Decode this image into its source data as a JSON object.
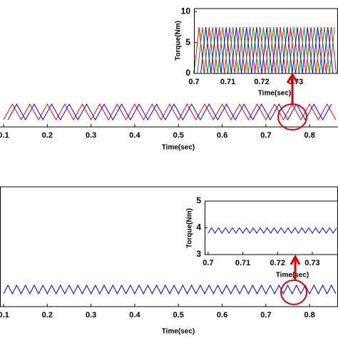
{
  "chart_data": [
    {
      "type": "line",
      "xlabel": "Time(sec)",
      "xlim": [
        0.0918,
        0.865
      ],
      "ylim": [
        -3.4,
        57.3
      ],
      "xticks": [
        0.1,
        0.2,
        0.3,
        0.4,
        0.5,
        0.6,
        0.7,
        0.8
      ],
      "series": [
        {
          "color": "#ff0000",
          "x": [
            0.1,
            0.12,
            0.14,
            0.16,
            0.18,
            0.2,
            0.22,
            0.24,
            0.26,
            0.28,
            0.3,
            0.32,
            0.34,
            0.36,
            0.38,
            0.4,
            0.42,
            0.44,
            0.46,
            0.48,
            0.5,
            0.52,
            0.54,
            0.56,
            0.58,
            0.6,
            0.62,
            0.64,
            0.66,
            0.68,
            0.7,
            0.72,
            0.74,
            0.76,
            0.78,
            0.8,
            0.82,
            0.84,
            0.86
          ],
          "values": [
            0,
            7.5,
            0,
            7.5,
            0,
            7.5,
            0,
            7.5,
            0,
            7.5,
            0,
            7.5,
            0,
            7.5,
            0,
            7.5,
            0,
            7.5,
            0,
            7.5,
            0,
            7.5,
            0,
            7.5,
            0,
            7.5,
            0,
            7.5,
            0,
            7.5,
            0,
            7.5,
            0,
            7.5,
            0,
            7.5,
            0,
            7.5,
            0
          ]
        },
        {
          "color": "#0000ff",
          "x": [
            0.11,
            0.13,
            0.15,
            0.17,
            0.19,
            0.21,
            0.23,
            0.25,
            0.27,
            0.29,
            0.31,
            0.33,
            0.35,
            0.37,
            0.39,
            0.41,
            0.43,
            0.45,
            0.47,
            0.49,
            0.51,
            0.53,
            0.55,
            0.57,
            0.59,
            0.61,
            0.63,
            0.65,
            0.67,
            0.69,
            0.71,
            0.73,
            0.75,
            0.77,
            0.79,
            0.81,
            0.83,
            0.85
          ],
          "values": [
            0,
            7.5,
            0,
            7.5,
            0,
            7.5,
            0,
            7.5,
            0,
            7.5,
            0,
            7.5,
            0,
            7.5,
            0,
            7.5,
            0,
            7.5,
            0,
            7.5,
            0,
            7.5,
            0,
            7.5,
            0,
            7.5,
            0,
            7.5,
            0,
            7.5,
            0,
            7.5,
            0,
            7.5,
            0,
            7.5,
            0,
            7.5
          ]
        }
      ]
    },
    {
      "type": "line",
      "xlabel": "Time(sec)",
      "ylabel": "Torque(Nm)",
      "xlim": [
        0.7,
        0.7425
      ],
      "ylim": [
        0,
        10.5
      ],
      "xticks": [
        0.7,
        0.71,
        0.72,
        0.73
      ],
      "yticks": [
        0,
        5,
        10
      ],
      "series": [
        {
          "color": "#ff0000",
          "x": [
            0.7,
            0.7015,
            0.703,
            0.7045,
            0.706,
            0.7075,
            0.709,
            0.7105,
            0.712,
            0.7135,
            0.715,
            0.7165,
            0.718,
            0.7195,
            0.721,
            0.7225,
            0.724,
            0.7255,
            0.727,
            0.7285,
            0.73,
            0.7315,
            0.733,
            0.7345,
            0.736,
            0.7375,
            0.739,
            0.7405,
            0.742
          ],
          "values": [
            0,
            7.5,
            0,
            7.5,
            0,
            7.5,
            0,
            7.5,
            0,
            7.5,
            0,
            7.5,
            0,
            7.5,
            0,
            7.5,
            0,
            7.5,
            0,
            7.5,
            0,
            7.5,
            0,
            7.5,
            0,
            7.5,
            0,
            7.5,
            0
          ]
        },
        {
          "color": "#00a000",
          "x": [
            0.701,
            0.7025,
            0.704,
            0.7055,
            0.707,
            0.7085,
            0.71,
            0.7115,
            0.713,
            0.7145,
            0.716,
            0.7175,
            0.719,
            0.7205,
            0.722,
            0.7235,
            0.725,
            0.7265,
            0.728,
            0.7295,
            0.731,
            0.7325,
            0.734,
            0.7355,
            0.737,
            0.7385,
            0.74,
            0.7415
          ],
          "values": [
            0,
            7.5,
            0,
            7.5,
            0,
            7.5,
            0,
            7.5,
            0,
            7.5,
            0,
            7.5,
            0,
            7.5,
            0,
            7.5,
            0,
            7.5,
            0,
            7.5,
            0,
            7.5,
            0,
            7.5,
            0,
            7.5,
            0,
            7.5
          ]
        },
        {
          "color": "#0000ff",
          "x": [
            0.702,
            0.7035,
            0.705,
            0.7065,
            0.708,
            0.7095,
            0.711,
            0.7125,
            0.714,
            0.7155,
            0.717,
            0.7185,
            0.72,
            0.7215,
            0.723,
            0.7245,
            0.726,
            0.7275,
            0.729,
            0.7305,
            0.732,
            0.7335,
            0.735,
            0.7365,
            0.738,
            0.7395,
            0.741
          ],
          "values": [
            0,
            7.5,
            0,
            7.5,
            0,
            7.5,
            0,
            7.5,
            0,
            7.5,
            0,
            7.5,
            0,
            7.5,
            0,
            7.5,
            0,
            7.5,
            0,
            7.5,
            0,
            7.5,
            0,
            7.5,
            0,
            7.5,
            0
          ]
        }
      ]
    },
    {
      "type": "line",
      "xlabel": "Time(sec)",
      "xlim": [
        0.0918,
        0.865
      ],
      "ylim": [
        3.1,
        8.7
      ],
      "xticks": [
        0.1,
        0.2,
        0.3,
        0.4,
        0.5,
        0.6,
        0.7,
        0.8
      ],
      "series": [
        {
          "color": "#0000cc",
          "x": [
            0.1,
            0.11,
            0.12,
            0.13,
            0.14,
            0.15,
            0.16,
            0.17,
            0.18,
            0.19,
            0.2,
            0.21,
            0.22,
            0.23,
            0.24,
            0.25,
            0.26,
            0.27,
            0.28,
            0.29,
            0.3,
            0.31,
            0.32,
            0.33,
            0.34,
            0.35,
            0.36,
            0.37,
            0.38,
            0.39,
            0.4,
            0.41,
            0.42,
            0.43,
            0.44,
            0.45,
            0.46,
            0.47,
            0.48,
            0.49,
            0.5,
            0.51,
            0.52,
            0.53,
            0.54,
            0.55,
            0.56,
            0.57,
            0.58,
            0.59,
            0.6,
            0.61,
            0.62,
            0.63,
            0.64,
            0.65,
            0.66,
            0.67,
            0.68,
            0.69,
            0.7,
            0.71,
            0.72,
            0.73,
            0.74,
            0.75,
            0.76,
            0.77,
            0.78,
            0.79,
            0.8,
            0.81,
            0.82,
            0.83,
            0.84,
            0.85,
            0.86
          ],
          "values": [
            3.7,
            4.1,
            3.7,
            4.1,
            3.7,
            4.1,
            3.7,
            4.1,
            3.7,
            4.1,
            3.7,
            4.1,
            3.7,
            4.1,
            3.7,
            4.1,
            3.7,
            4.1,
            3.7,
            4.1,
            3.7,
            4.1,
            3.7,
            4.1,
            3.7,
            4.1,
            3.7,
            4.1,
            3.7,
            4.1,
            3.7,
            4.1,
            3.7,
            4.1,
            3.7,
            4.1,
            3.7,
            4.1,
            3.7,
            4.1,
            3.7,
            4.1,
            3.7,
            4.1,
            3.7,
            4.1,
            3.7,
            4.1,
            3.7,
            4.1,
            3.7,
            4.1,
            3.7,
            4.1,
            3.7,
            4.1,
            3.7,
            4.1,
            3.7,
            4.1,
            3.7,
            4.1,
            3.7,
            4.1,
            3.7,
            4.1,
            3.7,
            4.1,
            3.7,
            4.1,
            3.7,
            4.1,
            3.7,
            4.1,
            3.7,
            4.1,
            3.7
          ]
        }
      ]
    },
    {
      "type": "line",
      "xlabel": "Time(sec)",
      "ylabel": "Torque(Nm)",
      "xlim": [
        0.699,
        0.7374
      ],
      "ylim": [
        3,
        5
      ],
      "xticks": [
        0.7,
        0.71,
        0.72,
        0.73
      ],
      "yticks": [
        3,
        4,
        5
      ],
      "series": [
        {
          "color": "#0000cc",
          "x": [
            0.7,
            0.701,
            0.702,
            0.703,
            0.704,
            0.705,
            0.706,
            0.707,
            0.708,
            0.709,
            0.71,
            0.711,
            0.712,
            0.713,
            0.714,
            0.715,
            0.716,
            0.717,
            0.718,
            0.719,
            0.72,
            0.721,
            0.722,
            0.723,
            0.724,
            0.725,
            0.726,
            0.727,
            0.728,
            0.729,
            0.73,
            0.731,
            0.732,
            0.733,
            0.734,
            0.735,
            0.736,
            0.737
          ],
          "values": [
            3.8,
            4,
            3.8,
            4,
            3.8,
            4,
            3.8,
            4,
            3.8,
            4,
            3.8,
            4,
            3.8,
            4,
            3.8,
            4,
            3.8,
            4,
            3.8,
            4,
            3.8,
            4,
            3.8,
            4,
            3.8,
            4,
            3.8,
            4,
            3.8,
            4,
            3.8,
            4,
            3.8,
            4,
            3.8,
            4,
            3.8,
            4
          ]
        }
      ]
    }
  ]
}
